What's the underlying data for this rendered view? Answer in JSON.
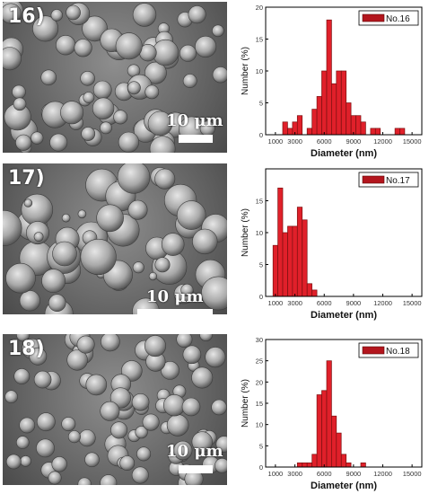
{
  "panels": [
    {
      "label": "16)",
      "scale_text": "10 μm",
      "chart_data": {
        "type": "bar",
        "legend": "No.16",
        "legend_position": "top-right",
        "xlabel": "Diameter (nm)",
        "ylabel": "Number (%)",
        "xlim": [
          0,
          16000
        ],
        "ylim": [
          0,
          20
        ],
        "xticks": [
          "1000",
          "3000",
          "6000",
          "9000",
          "12000",
          "15000"
        ],
        "xtick_values": [
          1000,
          3000,
          6000,
          9000,
          12000,
          15000
        ],
        "yticks": [
          "0",
          "5",
          "10",
          "15",
          "20"
        ],
        "ytick_values": [
          0,
          5,
          10,
          15,
          20
        ],
        "bin_width": 500,
        "x": [
          2000,
          2500,
          3000,
          3500,
          4500,
          5000,
          5500,
          6000,
          6500,
          7000,
          7500,
          8000,
          8500,
          9000,
          9500,
          10000,
          11000,
          11500,
          13500,
          14000
        ],
        "values": [
          2,
          1,
          2,
          3,
          1,
          4,
          6,
          10,
          18,
          8,
          10,
          10,
          5,
          3,
          3,
          2,
          1,
          1,
          1,
          1
        ]
      }
    },
    {
      "label": "17)",
      "scale_text": "10 μm",
      "chart_data": {
        "type": "bar",
        "legend": "No.17",
        "legend_position": "top-right",
        "xlabel": "Diameter (nm)",
        "ylabel": "Number (%)",
        "xlim": [
          0,
          16000
        ],
        "ylim": [
          0,
          20
        ],
        "xticks": [
          "1000",
          "3000",
          "6000",
          "9000",
          "12000",
          "15000"
        ],
        "xtick_values": [
          1000,
          3000,
          6000,
          9000,
          12000,
          15000
        ],
        "yticks": [
          "0",
          "5",
          "10",
          "15"
        ],
        "ytick_values": [
          0,
          5,
          10,
          15
        ],
        "bin_width": 500,
        "x": [
          1000,
          1500,
          2000,
          2500,
          3000,
          3500,
          4000,
          4500,
          5000
        ],
        "values": [
          8,
          17,
          10,
          11,
          11,
          14,
          12,
          2,
          1
        ]
      }
    },
    {
      "label": "18)",
      "scale_text": "10 μm",
      "chart_data": {
        "type": "bar",
        "legend": "No.18",
        "legend_position": "top-right",
        "xlabel": "Diameter (nm)",
        "ylabel": "Number (%)",
        "xlim": [
          0,
          16000
        ],
        "ylim": [
          0,
          30
        ],
        "xticks": [
          "1000",
          "3000",
          "6000",
          "9000",
          "12000",
          "15000"
        ],
        "xtick_values": [
          1000,
          3000,
          6000,
          9000,
          12000,
          15000
        ],
        "yticks": [
          "0",
          "5",
          "10",
          "15",
          "20",
          "25",
          "30"
        ],
        "ytick_values": [
          0,
          5,
          10,
          15,
          20,
          25,
          30
        ],
        "bin_width": 500,
        "x": [
          3500,
          4000,
          4500,
          5000,
          5500,
          6000,
          6500,
          7000,
          7500,
          8000,
          8500,
          10000
        ],
        "values": [
          1,
          1,
          1,
          3,
          17,
          18,
          25,
          12,
          8,
          3,
          1,
          1
        ]
      }
    }
  ]
}
